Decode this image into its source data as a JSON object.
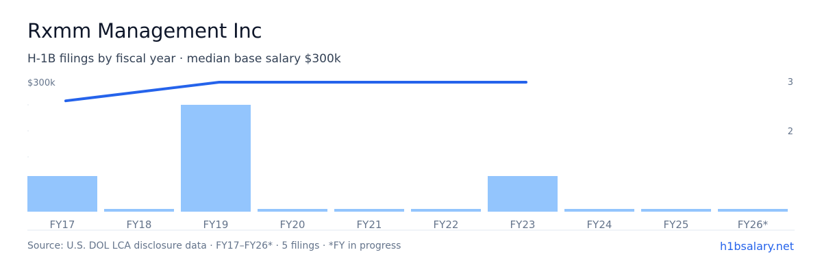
{
  "header": {
    "title": "Rxmm Management Inc",
    "subtitle": "H-1B filings by fiscal year · median base salary $300k"
  },
  "footer": {
    "source": "Source: U.S. DOL LCA disclosure data · FY17–FY26* · 5 filings · *FY in progress",
    "brand": "h1bsalary.net"
  },
  "colors": {
    "bar": "#93c5fd",
    "line": "#2563eb",
    "axis_text": "#64748b",
    "baseline": "#e2e8f0"
  },
  "chart_data": {
    "type": "bar",
    "categories": [
      "FY17",
      "FY18",
      "FY19",
      "FY20",
      "FY21",
      "FY22",
      "FY23",
      "FY24",
      "FY25",
      "FY26*"
    ],
    "series": [
      {
        "type": "bar",
        "axis": "right",
        "values": [
          1,
          0,
          3,
          0,
          0,
          0,
          1,
          0,
          0,
          0
        ]
      },
      {
        "type": "line",
        "axis": "left",
        "values": [
          265000,
          null,
          300000,
          300000,
          300000,
          300000,
          300000,
          null,
          null,
          null
        ]
      }
    ],
    "left_axis": {
      "label": "$300k",
      "max": 300000
    },
    "right_axis": {
      "ticks": [
        "3",
        "2"
      ],
      "max": 3
    },
    "grid": false,
    "legend": "none"
  }
}
